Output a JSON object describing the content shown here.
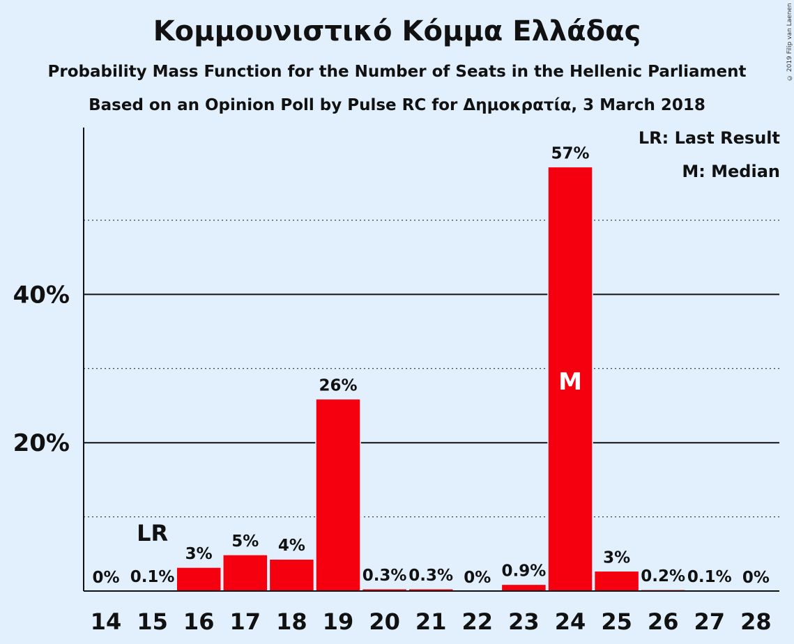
{
  "title": "Κομμουνιστικό Κόμμα Ελλάδας",
  "subtitle": "Probability Mass Function for the Number of Seats in the Hellenic Parliament",
  "source": "Based on an Opinion Poll by Pulse RC for Δημοκρατία, 3 March 2018",
  "copyright": "© 2019 Filip van Laenen",
  "legend": {
    "last_result": "LR: Last Result",
    "median": "M: Median"
  },
  "colors": {
    "bar": "#f5000f",
    "background": "#e2f0fd",
    "text": "#111111"
  },
  "chart_data": {
    "type": "bar",
    "categories": [
      "14",
      "15",
      "16",
      "17",
      "18",
      "19",
      "20",
      "21",
      "22",
      "23",
      "24",
      "25",
      "26",
      "27",
      "28"
    ],
    "values": [
      0,
      0.1,
      3.2,
      4.9,
      4.3,
      25.9,
      0.3,
      0.3,
      0,
      0.9,
      57.2,
      2.7,
      0.2,
      0.1,
      0
    ],
    "labels": [
      "0%",
      "0.1%",
      "3%",
      "5%",
      "4%",
      "26%",
      "0.3%",
      "0.3%",
      "0%",
      "0.9%",
      "57%",
      "3%",
      "0.2%",
      "0.1%",
      "0%"
    ],
    "ylim": [
      0,
      62.5
    ],
    "yticks": [
      20,
      40
    ],
    "ytick_labels": [
      "20%",
      "40%"
    ],
    "solid_gridlines": [
      20,
      40
    ],
    "dotted_gridlines": [
      10,
      30,
      50
    ],
    "last_result_category": "15",
    "last_result_label": "LR",
    "median_category": "24",
    "median_label": "M",
    "xlabel": "",
    "ylabel": ""
  }
}
